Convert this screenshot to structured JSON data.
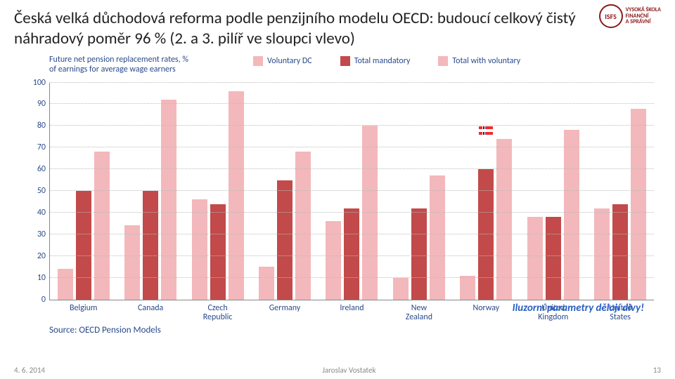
{
  "logo": {
    "mark": "ISFS",
    "line1": "VYSOKÁ ŠKOLA",
    "line2": "FINANČNÍ",
    "line3": "A SPRÁVNÍ"
  },
  "title": "Česká velká důchodová reforma podle penzijního modelu OECD: budoucí celkový čistý náhradový poměr 96 % (2. a 3. pilíř ve sloupci vlevo)",
  "chart": {
    "desc1": "Future net pension replacement rates, %",
    "desc2": "of earnings for average wage earners",
    "legend": [
      {
        "label": "Voluntary DC",
        "color": "#f3b8bb"
      },
      {
        "label": "Total mandatory",
        "color": "#c24a4a"
      },
      {
        "label": "Total with voluntary",
        "color": "#f3b8bb"
      }
    ],
    "ymax": 100,
    "yticks": [
      0,
      10,
      20,
      30,
      40,
      50,
      60,
      70,
      80,
      90,
      100
    ],
    "colors": {
      "vol": "#f3b8bb",
      "mand": "#c24a4a",
      "total": "#f3b8bb"
    },
    "groups": [
      {
        "label": "Belgium",
        "vol": 14,
        "mand": 50,
        "total": 68
      },
      {
        "label": "Canada",
        "vol": 34,
        "mand": 50,
        "total": 92
      },
      {
        "label": "Czech Republic",
        "vol": 46,
        "mand": 44,
        "total": 96
      },
      {
        "label": "Germany",
        "vol": 15,
        "mand": 55,
        "total": 68
      },
      {
        "label": "Ireland",
        "vol": 36,
        "mand": 42,
        "total": 80
      },
      {
        "label": "New Zealand",
        "vol": 10,
        "mand": 42,
        "total": 57
      },
      {
        "label": "Norway",
        "vol": 11,
        "mand": 60,
        "total": 74
      },
      {
        "label": "United Kingdom",
        "vol": 38,
        "mand": 38,
        "total": 78
      },
      {
        "label": "United States",
        "vol": 42,
        "mand": 44,
        "total": 88
      }
    ],
    "source": "Source: OECD Pension Models",
    "note": "Iluzorní parametry dělají divy!"
  },
  "footer": {
    "date": "4. 6. 2014",
    "author": "Jaroslav Vostatek",
    "page": "13"
  }
}
